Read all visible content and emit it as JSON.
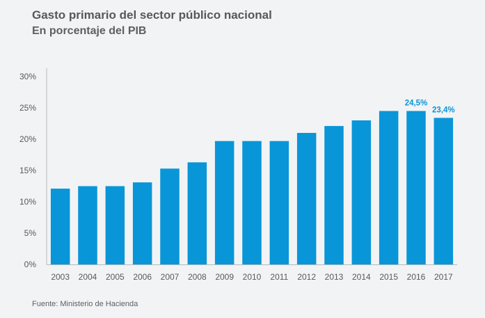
{
  "title": "Gasto primario del sector público nacional",
  "subtitle": "En porcentaje del PIB",
  "source": "Fuente: Ministerio de Hacienda",
  "colors": {
    "bar": "#0896d8",
    "data_label": "#0896d8",
    "axis": "#b5b9bd"
  },
  "chart_data": {
    "type": "bar",
    "categories": [
      "2003",
      "2004",
      "2005",
      "2006",
      "2007",
      "2008",
      "2009",
      "2010",
      "2011",
      "2012",
      "2013",
      "2014",
      "2015",
      "2016",
      "2017"
    ],
    "values": [
      12.1,
      12.5,
      12.5,
      13.1,
      15.3,
      16.3,
      19.7,
      19.7,
      19.7,
      21.0,
      22.1,
      23.0,
      24.5,
      24.5,
      23.4
    ],
    "data_labels": [
      {
        "index": 13,
        "text": "24,5%"
      },
      {
        "index": 14,
        "text": "23,4%"
      }
    ],
    "yticks": [
      {
        "value": 0,
        "label": "0%"
      },
      {
        "value": 5,
        "label": "5%"
      },
      {
        "value": 10,
        "label": "10%"
      },
      {
        "value": 15,
        "label": "15%"
      },
      {
        "value": 20,
        "label": "20%"
      },
      {
        "value": 25,
        "label": "25%"
      },
      {
        "value": 30,
        "label": "30%"
      }
    ],
    "ylim": [
      0,
      30
    ],
    "grid": false
  }
}
